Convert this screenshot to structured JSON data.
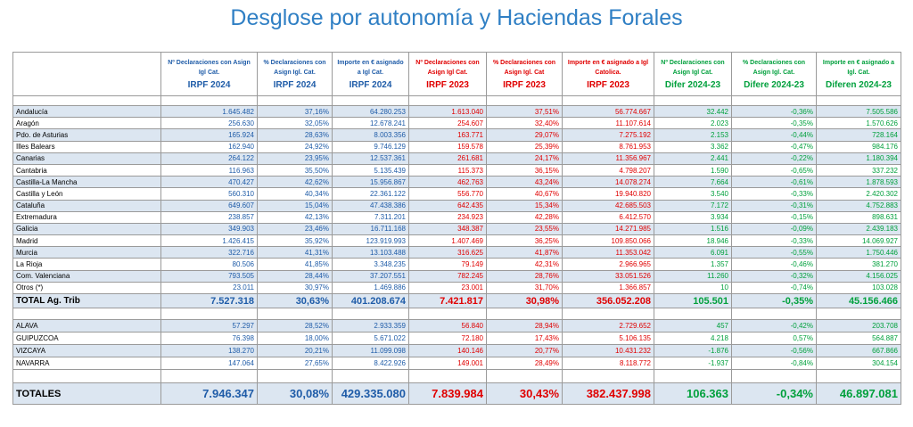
{
  "title": "Desglose por autonomía y Haciendas Forales",
  "table": {
    "header": [
      {
        "label": "Nº Declaraciones con Asign Igl Cat.",
        "period": "IRPF 2024"
      },
      {
        "label": "% Declaraciones con Asign Igl. Cat.",
        "period": "IRPF 2024"
      },
      {
        "label": "Importe en € asignado a Igl Cat.",
        "period": "IRPF 2024"
      },
      {
        "label": "Nº Declaraciones con Asign Igl Cat.",
        "period": "IRPF 2023"
      },
      {
        "label": "% Declaraciones con Asign Igl. Cat",
        "period": "IRPF 2023"
      },
      {
        "label": "Importe en € asignado a Igl Catolica.",
        "period": "IRPF 2023"
      },
      {
        "label": "Nº Declaraciones con Asign Igl Cat.",
        "period": "Difer 2024-23"
      },
      {
        "label": "% Declaraciones con Asign Igl. Cat.",
        "period": "Difere 2024-23"
      },
      {
        "label": "Importe en € asignado a Igl. Cat.",
        "period": "Diferen 2024-23"
      }
    ],
    "rows": [
      [
        "Andalucía",
        "1.645.482",
        "37,16%",
        "64.280.253",
        "1.613.040",
        "37,51%",
        "56.774.667",
        "32.442",
        "-0,36%",
        "7.505.586"
      ],
      [
        "Aragón",
        "256.630",
        "32,05%",
        "12.678.241",
        "254.607",
        "32,40%",
        "11.107.614",
        "2.023",
        "-0,35%",
        "1.570.626"
      ],
      [
        "Pdo. de Asturias",
        "165.924",
        "28,63%",
        "8.003.356",
        "163.771",
        "29,07%",
        "7.275.192",
        "2.153",
        "-0,44%",
        "728.164"
      ],
      [
        "Illes Balears",
        "162.940",
        "24,92%",
        "9.746.129",
        "159.578",
        "25,39%",
        "8.761.953",
        "3.362",
        "-0,47%",
        "984.176"
      ],
      [
        "Canarias",
        "264.122",
        "23,95%",
        "12.537.361",
        "261.681",
        "24,17%",
        "11.356.967",
        "2.441",
        "-0,22%",
        "1.180.394"
      ],
      [
        "Cantabria",
        "116.963",
        "35,50%",
        "5.135.439",
        "115.373",
        "36,15%",
        "4.798.207",
        "1.590",
        "-0,65%",
        "337.232"
      ],
      [
        "Castilla-La Mancha",
        "470.427",
        "42,62%",
        "15.956.867",
        "462.763",
        "43,24%",
        "14.078.274",
        "7.664",
        "-0,61%",
        "1.878.593"
      ],
      [
        "Castilla y León",
        "560.310",
        "40,34%",
        "22.361.122",
        "556.770",
        "40,67%",
        "19.940.820",
        "3.540",
        "-0,33%",
        "2.420.302"
      ],
      [
        "Cataluña",
        "649.607",
        "15,04%",
        "47.438.386",
        "642.435",
        "15,34%",
        "42.685.503",
        "7.172",
        "-0,31%",
        "4.752.883"
      ],
      [
        "Extremadura",
        "238.857",
        "42,13%",
        "7.311.201",
        "234.923",
        "42,28%",
        "6.412.570",
        "3.934",
        "-0,15%",
        "898.631"
      ],
      [
        "Galicia",
        "349.903",
        "23,46%",
        "16.711.168",
        "348.387",
        "23,55%",
        "14.271.985",
        "1.516",
        "-0,09%",
        "2.439.183"
      ],
      [
        "Madrid",
        "1.426.415",
        "35,92%",
        "123.919.993",
        "1.407.469",
        "36,25%",
        "109.850.066",
        "18.946",
        "-0,33%",
        "14.069.927"
      ],
      [
        "Murcia",
        "322.716",
        "41,31%",
        "13.103.488",
        "316.625",
        "41,87%",
        "11.353.042",
        "6.091",
        "-0,55%",
        "1.750.446"
      ],
      [
        "La Rioja",
        "80.506",
        "41,85%",
        "3.348.235",
        "79.149",
        "42,31%",
        "2.966.965",
        "1.357",
        "-0,46%",
        "381.270"
      ],
      [
        "Com. Valenciana",
        "793.505",
        "28,44%",
        "37.207.551",
        "782.245",
        "28,76%",
        "33.051.526",
        "11.260",
        "-0,32%",
        "4.156.025"
      ],
      [
        "Otros (*)",
        "23.011",
        "30,97%",
        "1.469.886",
        "23.001",
        "31,70%",
        "1.366.857",
        "10",
        "-0,74%",
        "103.028"
      ]
    ],
    "total": [
      "TOTAL Ag. Trib",
      "7.527.318",
      "30,63%",
      "401.208.674",
      "7.421.817",
      "30,98%",
      "356.052.208",
      "105.501",
      "-0,35%",
      "45.156.466"
    ],
    "foral_rows": [
      [
        "ALAVA",
        "57.297",
        "28,52%",
        "2.933.359",
        "56.840",
        "28,94%",
        "2.729.652",
        "457",
        "-0,42%",
        "203.708"
      ],
      [
        "GUIPUZCOA",
        "76.398",
        "18,00%",
        "5.671.022",
        "72.180",
        "17,43%",
        "5.106.135",
        "4.218",
        "0,57%",
        "564.887"
      ],
      [
        "VIZCAYA",
        "138.270",
        "20,21%",
        "11.099.098",
        "140.146",
        "20,77%",
        "10.431.232",
        "-1.876",
        "-0,56%",
        "667.866"
      ],
      [
        "NAVARRA",
        "147.064",
        "27,65%",
        "8.422.926",
        "149.001",
        "28,49%",
        "8.118.772",
        "-1.937",
        "-0,84%",
        "304.154"
      ]
    ],
    "grand_total": [
      "TOTALES",
      "7.946.347",
      "30,08%",
      "429.335.080",
      "7.839.984",
      "30,43%",
      "382.437.998",
      "106.363",
      "-0,34%",
      "46.897.081"
    ]
  }
}
